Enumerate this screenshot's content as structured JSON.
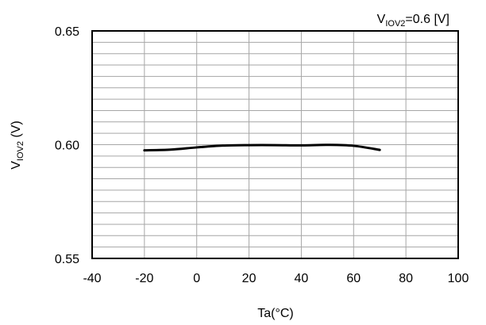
{
  "chart_data": {
    "type": "line",
    "title": "",
    "xlabel": "Ta(°C)",
    "ylabel_main": "V",
    "ylabel_sub": "IOV2",
    "ylabel_unit": " (V)",
    "condition": {
      "main": "V",
      "sub": "IOV2",
      "rest": "=0.6 [V]"
    },
    "xlim": [
      -40,
      100
    ],
    "ylim": [
      0.55,
      0.65
    ],
    "x_ticks": [
      -40,
      -20,
      0,
      20,
      40,
      60,
      80,
      100
    ],
    "x_tick_labels": [
      "-40",
      "-20",
      "0",
      "20",
      "40",
      "60",
      "80",
      "100"
    ],
    "y_ticks": [
      0.55,
      0.6,
      0.65
    ],
    "y_tick_labels": [
      "0.55",
      "0.60",
      "0.65"
    ],
    "x_grid_step": 20,
    "y_grid_step": 0.005,
    "grid": true,
    "series_color": "#000000",
    "series": [
      {
        "x": [
          -20,
          -10,
          0,
          10,
          20,
          30,
          40,
          50,
          60,
          70
        ],
        "values": [
          0.5975,
          0.5978,
          0.5988,
          0.5996,
          0.5998,
          0.5998,
          0.5997,
          0.5999,
          0.5995,
          0.5977
        ]
      }
    ]
  }
}
